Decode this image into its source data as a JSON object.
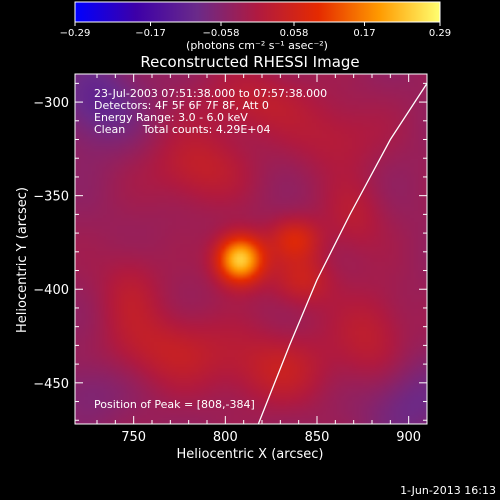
{
  "chart_data": {
    "type": "heatmap",
    "title": "Reconstructed RHESSI Image",
    "xlabel": "Heliocentric X (arcsec)",
    "ylabel": "Heliocentric Y (arcsec)",
    "xlim": [
      718,
      910
    ],
    "ylim": [
      -472,
      -285
    ],
    "xticks": [
      750,
      800,
      850,
      900
    ],
    "yticks": [
      -300,
      -350,
      -400,
      -450
    ],
    "xtick_labels": [
      "750",
      "800",
      "850",
      "900"
    ],
    "ytick_labels": [
      "−300",
      "−350",
      "−400",
      "−450"
    ],
    "colorbar": {
      "range": [
        -0.29,
        0.29
      ],
      "ticks": [
        -0.29,
        -0.17,
        -0.058,
        0.058,
        0.17,
        0.29
      ],
      "tick_labels": [
        "−0.29",
        "−0.17",
        "−0.058",
        "0.058",
        "0.17",
        "0.29"
      ],
      "unit_label": "(photons cm⁻² s⁻¹ asec⁻²)",
      "colormap": [
        "#0000ff",
        "#3d00a8",
        "#6a2a8a",
        "#b01a40",
        "#e52a00",
        "#ff9a00",
        "#ffff70"
      ]
    },
    "info_lines": [
      "23-Jul-2003 07:51:38.000 to 07:57:38.000",
      "Detectors: 4F 5F 6F 7F 8F, Att 0",
      "Energy Range: 3.0 - 6.0 keV",
      "Clean     Total counts: 4.29E+04"
    ],
    "peak_label": "Position of Peak = [808,-384]",
    "peak": {
      "x": 808,
      "y": -384,
      "value": 0.29
    },
    "sources": [
      {
        "x": 808,
        "y": -384,
        "sx": 9,
        "sy": 9,
        "amp": 0.29
      },
      {
        "x": 838,
        "y": -373,
        "sx": 10,
        "sy": 8,
        "amp": 0.1
      },
      {
        "x": 842,
        "y": -395,
        "sx": 12,
        "sy": 10,
        "amp": 0.08
      },
      {
        "x": 785,
        "y": -335,
        "sx": 18,
        "sy": 14,
        "amp": 0.07
      },
      {
        "x": 815,
        "y": -300,
        "sx": 20,
        "sy": 12,
        "amp": 0.06
      },
      {
        "x": 860,
        "y": -318,
        "sx": 18,
        "sy": 14,
        "amp": 0.05
      },
      {
        "x": 770,
        "y": -432,
        "sx": 22,
        "sy": 14,
        "amp": 0.07
      },
      {
        "x": 828,
        "y": -442,
        "sx": 22,
        "sy": 14,
        "amp": 0.07
      },
      {
        "x": 880,
        "y": -425,
        "sx": 14,
        "sy": 18,
        "amp": 0.06
      },
      {
        "x": 748,
        "y": -400,
        "sx": 12,
        "sy": 16,
        "amp": 0.05
      },
      {
        "x": 870,
        "y": -362,
        "sx": 12,
        "sy": 14,
        "amp": 0.05
      },
      {
        "x": 730,
        "y": -300,
        "sx": 16,
        "sy": 16,
        "amp": -0.08
      },
      {
        "x": 900,
        "y": -460,
        "sx": 18,
        "sy": 16,
        "amp": -0.06
      },
      {
        "x": 725,
        "y": -455,
        "sx": 14,
        "sy": 12,
        "amp": -0.04
      }
    ],
    "limb_curve": [
      [
        910,
        -290
      ],
      [
        890,
        -320
      ],
      [
        868,
        -360
      ],
      [
        850,
        -395
      ],
      [
        835,
        -430
      ],
      [
        818,
        -472
      ]
    ],
    "colors": {
      "background": "#000000",
      "text": "#ffffff",
      "limb": "#ffffff"
    }
  },
  "footer": {
    "date": "1-Jun-2013 16:13"
  }
}
